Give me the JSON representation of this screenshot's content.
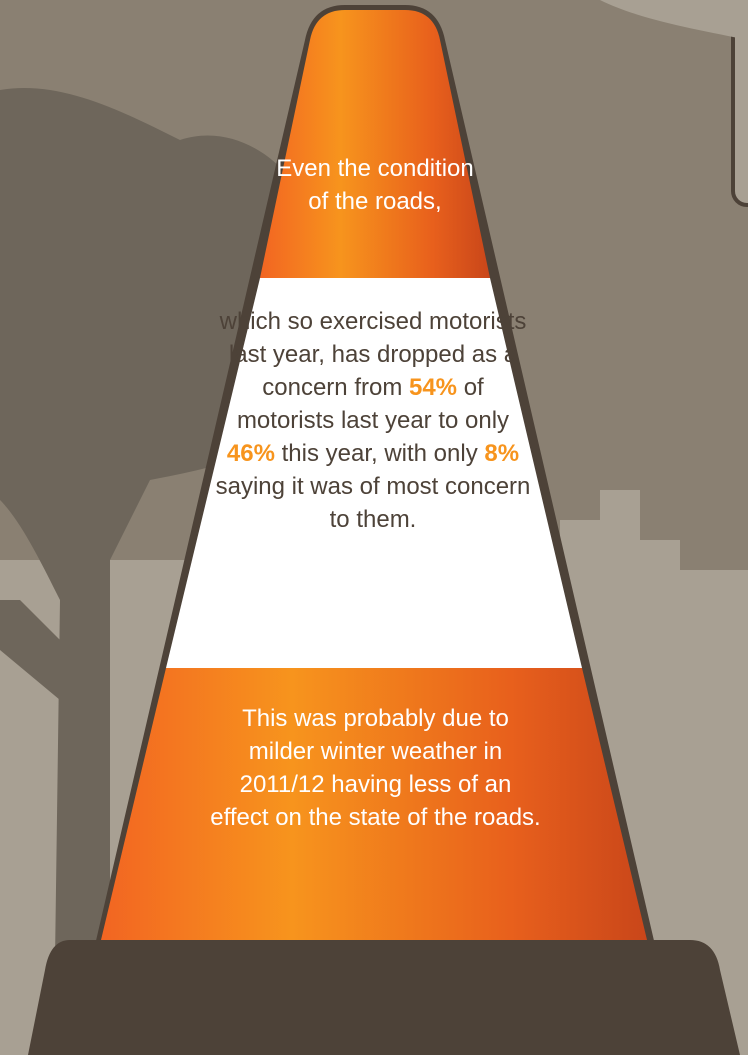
{
  "intro": "Even the condition of the roads,",
  "middle": [
    "which so exercised motorists last year, has dropped as a concern from ",
    "54%",
    " of motorists last year to only ",
    "46%",
    " this year, with only ",
    "8%",
    " saying it was of most concern to them."
  ],
  "closing": "This was probably due to milder winter weather in 2011/12 having less of an effect on the state of the roads."
}
